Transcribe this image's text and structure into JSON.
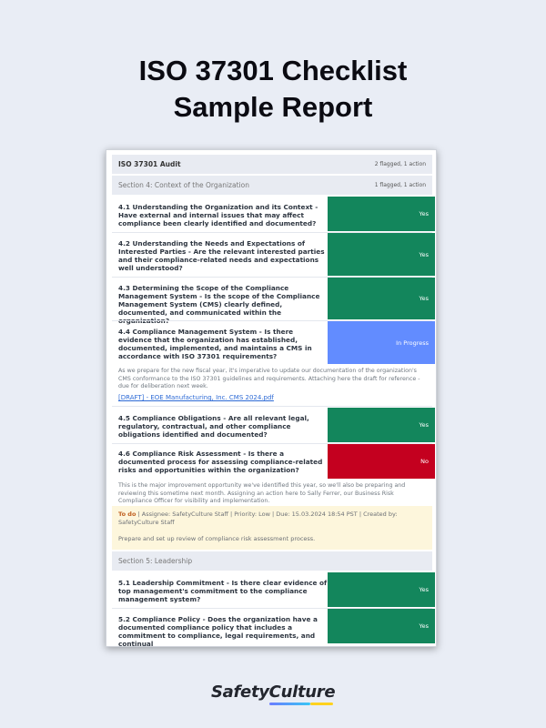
{
  "page": {
    "title_line1": "ISO 37301 Checklist",
    "title_line2": "Sample Report"
  },
  "report": {
    "header": {
      "title": "ISO 37301 Audit",
      "summary": "2 flagged, 1 action"
    },
    "section4": {
      "title": "Section 4: Context of the Organization",
      "summary": "1 flagged, 1 action"
    },
    "items": [
      {
        "question": "4.1 Understanding the Organization and its Context - Have external and internal issues that may affect compliance been clearly identified and documented?",
        "answer": "Yes"
      },
      {
        "question": "4.2 Understanding the Needs and Expectations of Interested Parties - Are the relevant interested parties and their compliance-related needs and expectations well understood?",
        "answer": "Yes"
      },
      {
        "question": "4.3 Determining the Scope of the Compliance Management System - Is the scope of the Compliance Management System (CMS) clearly defined, documented, and communicated within the organization?",
        "answer": "Yes"
      },
      {
        "question": "4.4 Compliance Management System  - Is there evidence that the organization has established, documented, implemented, and maintains a CMS in accordance with ISO 37301 requirements?",
        "answer": "In Progress",
        "note": "As we prepare for the new fiscal year, it's imperative to update our documentation of the organization's CMS conformance to the ISO 37301 guidelines and requirements. Attaching here the draft for reference - due for deliberation next week.",
        "attachment": "[DRAFT] - EOE Manufacturing, Inc. CMS 2024.pdf"
      },
      {
        "question": "4.5 Compliance Obligations - Are all relevant legal, regulatory, contractual, and other compliance obligations identified and documented?",
        "answer": "Yes"
      },
      {
        "question": "4.6 Compliance Risk Assessment - Is there a documented process for assessing compliance-related risks and opportunities within the organization?",
        "answer": "No",
        "note": "This is the major improvement opportunity we've identified this year, so we'll also be preparing and reviewing this sometime next month. Assigning an action here to Sally Ferrer, our Business Risk Compliance Officer for visibility and implementation."
      }
    ],
    "action": {
      "status": "To do",
      "meta": " | Assignee: SafetyCulture Staff | Priority: Low | Due: 15.03.2024 18:54 PST | Created by: SafetyCulture Staff",
      "description": "Prepare and set up review of compliance risk assessment process."
    },
    "section5": {
      "title": "Section 5: Leadership"
    },
    "items5": [
      {
        "question": "5.1 Leadership Commitment - Is there clear evidence of top management's commitment to the compliance management system?",
        "answer": "Yes"
      },
      {
        "question": "5.2 Compliance Policy - Does the organization have a documented compliance policy that includes a commitment to compliance, legal requirements, and continual",
        "answer": "Yes"
      }
    ]
  },
  "colors": {
    "yes": "#13865c",
    "no": "#c4001f",
    "in_progress": "#628cff"
  },
  "brand": {
    "logo": "SafetyCulture"
  }
}
